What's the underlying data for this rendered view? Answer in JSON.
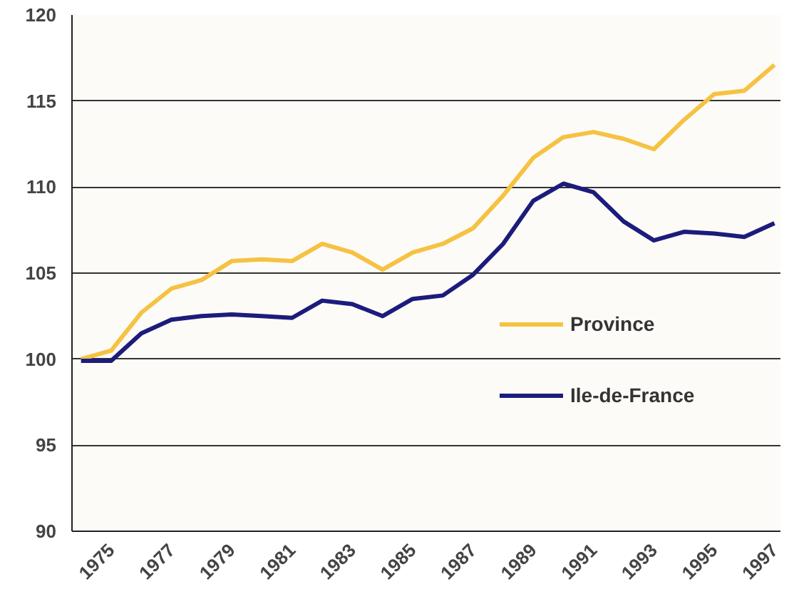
{
  "chart_data": {
    "type": "line",
    "x": [
      1974,
      1975,
      1976,
      1977,
      1978,
      1979,
      1980,
      1981,
      1982,
      1983,
      1984,
      1985,
      1986,
      1987,
      1988,
      1989,
      1990,
      1991,
      1992,
      1993,
      1994,
      1995,
      1996,
      1997
    ],
    "series": [
      {
        "name": "Province",
        "color": "#f5c242",
        "values": [
          100,
          100.5,
          102.7,
          104.1,
          104.6,
          105.7,
          105.8,
          105.7,
          106.7,
          106.2,
          105.2,
          106.2,
          106.7,
          107.6,
          109.5,
          111.7,
          112.9,
          113.2,
          112.8,
          112.2,
          113.9,
          115.4,
          115.6,
          117.1
        ]
      },
      {
        "name": "Ile-de-France",
        "color": "#1c1c7c",
        "values": [
          99.9,
          99.9,
          101.5,
          102.3,
          102.5,
          102.6,
          102.5,
          102.4,
          103.4,
          103.2,
          102.5,
          103.5,
          103.7,
          104.9,
          106.7,
          109.2,
          110.2,
          109.7,
          108,
          106.9,
          107.4,
          107.3,
          107.1,
          107.9
        ]
      }
    ],
    "xlim": [
      1973.7,
      1997.2
    ],
    "xticks": [
      1975,
      1977,
      1979,
      1981,
      1983,
      1985,
      1987,
      1989,
      1991,
      1993,
      1995,
      1997
    ],
    "ylim": [
      90,
      120
    ],
    "yticks": [
      90,
      95,
      100,
      105,
      110,
      115,
      120
    ],
    "grid": "y",
    "legend": "right",
    "marker": "none",
    "line_style": "solid"
  }
}
